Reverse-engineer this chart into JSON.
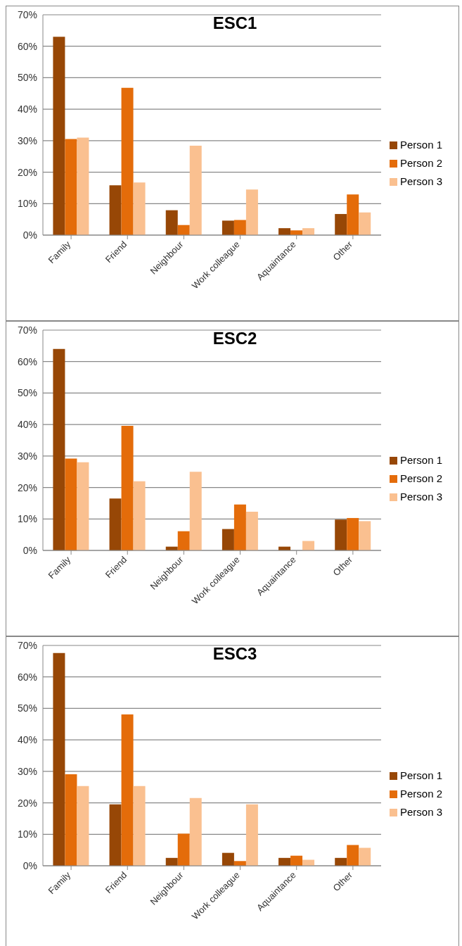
{
  "chart_data": [
    {
      "type": "bar",
      "title": "ESC1",
      "categories": [
        "Family",
        "Friend",
        "Neighbour",
        "Work colleague",
        "Aquaintance",
        "Other"
      ],
      "series": [
        {
          "name": "Person 1",
          "color": "#974706",
          "values": [
            63,
            15.8,
            7.9,
            4.6,
            2.2,
            6.7
          ]
        },
        {
          "name": "Person 2",
          "color": "#e46c0a",
          "values": [
            30.5,
            46.8,
            3.2,
            4.8,
            1.5,
            12.9
          ]
        },
        {
          "name": "Person 3",
          "color": "#fac090",
          "values": [
            31,
            16.7,
            28.4,
            14.5,
            2.2,
            7.2
          ]
        }
      ],
      "ylim": [
        0,
        70
      ],
      "yticks": [
        {
          "value": 0,
          "label": "0%"
        },
        {
          "value": 10,
          "label": "10%"
        },
        {
          "value": 20,
          "label": "20%"
        },
        {
          "value": 30,
          "label": "30%"
        },
        {
          "value": 40,
          "label": "40%"
        },
        {
          "value": 50,
          "label": "50%"
        },
        {
          "value": 60,
          "label": "60%"
        },
        {
          "value": 70,
          "label": "70%"
        }
      ],
      "grid": "y",
      "legend": "right"
    },
    {
      "type": "bar",
      "title": "ESC2",
      "categories": [
        "Family",
        "Friend",
        "Neighbour",
        "Work colleague",
        "Aquaintance",
        "Other"
      ],
      "series": [
        {
          "name": "Person 1",
          "color": "#974706",
          "values": [
            64,
            16.5,
            1.2,
            6.8,
            1.2,
            9.8
          ]
        },
        {
          "name": "Person 2",
          "color": "#e46c0a",
          "values": [
            29.2,
            39.6,
            6.1,
            14.6,
            0,
            10.3
          ]
        },
        {
          "name": "Person 3",
          "color": "#fac090",
          "values": [
            28,
            22,
            25,
            12.3,
            3,
            9.3
          ]
        }
      ],
      "ylim": [
        0,
        70
      ],
      "yticks": [
        {
          "value": 0,
          "label": "0%"
        },
        {
          "value": 10,
          "label": "10%"
        },
        {
          "value": 20,
          "label": "20%"
        },
        {
          "value": 30,
          "label": "30%"
        },
        {
          "value": 40,
          "label": "40%"
        },
        {
          "value": 50,
          "label": "50%"
        },
        {
          "value": 60,
          "label": "60%"
        },
        {
          "value": 70,
          "label": "70%"
        }
      ],
      "grid": "y",
      "legend": "right"
    },
    {
      "type": "bar",
      "title": "ESC3",
      "categories": [
        "Family",
        "Friend",
        "Neighbour",
        "Work colleague",
        "Aquaintance",
        "Other"
      ],
      "series": [
        {
          "name": "Person 1",
          "color": "#974706",
          "values": [
            67.6,
            19.5,
            2.5,
            4.1,
            2.5,
            2.5
          ]
        },
        {
          "name": "Person 2",
          "color": "#e46c0a",
          "values": [
            29.1,
            48.1,
            10.2,
            1.5,
            3.2,
            6.6
          ]
        },
        {
          "name": "Person 3",
          "color": "#fac090",
          "values": [
            25.3,
            25.3,
            21.5,
            19.5,
            1.9,
            5.7
          ]
        }
      ],
      "ylim": [
        0,
        70
      ],
      "yticks": [
        {
          "value": 0,
          "label": "0%"
        },
        {
          "value": 10,
          "label": "10%"
        },
        {
          "value": 20,
          "label": "20%"
        },
        {
          "value": 30,
          "label": "30%"
        },
        {
          "value": 40,
          "label": "40%"
        },
        {
          "value": 50,
          "label": "50%"
        },
        {
          "value": 60,
          "label": "60%"
        },
        {
          "value": 70,
          "label": "70%"
        }
      ],
      "grid": "y",
      "legend": "right"
    }
  ]
}
